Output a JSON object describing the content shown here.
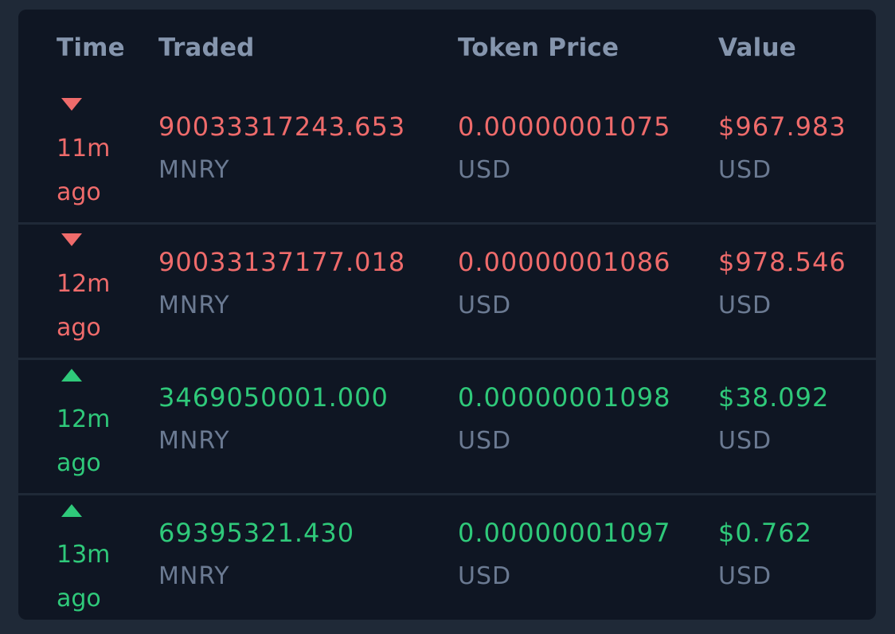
{
  "table": {
    "headers": {
      "time": "Time",
      "traded": "Traded",
      "price": "Token Price",
      "value": "Value"
    },
    "rows": [
      {
        "side": "sell",
        "time": "11m",
        "ago": "ago",
        "traded": "90033317243.653",
        "traded_unit": "MNRY",
        "price": "0.00000001075",
        "price_unit": "USD",
        "value": "$967.983",
        "value_unit": "USD"
      },
      {
        "side": "sell",
        "time": "12m",
        "ago": "ago",
        "traded": "90033137177.018",
        "traded_unit": "MNRY",
        "price": "0.00000001086",
        "price_unit": "USD",
        "value": "$978.546",
        "value_unit": "USD"
      },
      {
        "side": "buy",
        "time": "12m",
        "ago": "ago",
        "traded": "3469050001.000",
        "traded_unit": "MNRY",
        "price": "0.00000001098",
        "price_unit": "USD",
        "value": "$38.092",
        "value_unit": "USD"
      },
      {
        "side": "buy",
        "time": "13m",
        "ago": "ago",
        "traded": "69395321.430",
        "traded_unit": "MNRY",
        "price": "0.00000001097",
        "price_unit": "USD",
        "value": "$0.762",
        "value_unit": "USD"
      }
    ]
  },
  "colors": {
    "background": "#1f2937",
    "panel": "#0f1623",
    "header_text": "#8595ad",
    "sell": "#ef6b6b",
    "buy": "#2fc97a",
    "unit_text": "#6b7a92"
  },
  "icons": {
    "sell": "triangle-down-icon",
    "buy": "triangle-up-icon"
  }
}
